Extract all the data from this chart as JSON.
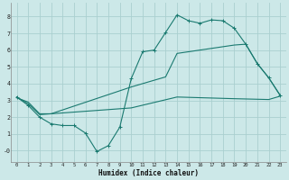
{
  "xlabel": "Humidex (Indice chaleur)",
  "bg_color": "#cce8e8",
  "line_color": "#1a7a70",
  "grid_color": "#aacfcf",
  "xlim": [
    -0.5,
    23.5
  ],
  "ylim": [
    -0.7,
    8.8
  ],
  "yticks": [
    0,
    1,
    2,
    3,
    4,
    5,
    6,
    7,
    8
  ],
  "xticks": [
    0,
    1,
    2,
    3,
    4,
    5,
    6,
    7,
    8,
    9,
    10,
    11,
    12,
    13,
    14,
    15,
    16,
    17,
    18,
    19,
    20,
    21,
    22,
    23
  ],
  "curve1_x": [
    0,
    1,
    2,
    3,
    4,
    5,
    6,
    7,
    8,
    9,
    10,
    11,
    12,
    13,
    14,
    15,
    16,
    17,
    18,
    19,
    20,
    21,
    22,
    23
  ],
  "curve1_y": [
    3.2,
    2.7,
    2.0,
    1.6,
    1.5,
    1.5,
    1.05,
    -0.05,
    0.3,
    1.4,
    4.3,
    5.9,
    6.0,
    7.05,
    8.1,
    7.75,
    7.6,
    7.8,
    7.75,
    7.3,
    6.35,
    5.2,
    4.35,
    3.3
  ],
  "curve2_x": [
    0,
    1,
    2,
    3,
    10,
    13,
    14,
    19,
    20,
    21,
    22,
    23
  ],
  "curve2_y": [
    3.2,
    2.8,
    2.15,
    2.2,
    3.8,
    4.4,
    5.8,
    6.3,
    6.35,
    5.2,
    4.35,
    3.3
  ],
  "curve3_x": [
    0,
    1,
    2,
    3,
    10,
    14,
    19,
    22,
    23
  ],
  "curve3_y": [
    3.15,
    2.9,
    2.2,
    2.2,
    2.55,
    3.2,
    3.1,
    3.05,
    3.25
  ]
}
